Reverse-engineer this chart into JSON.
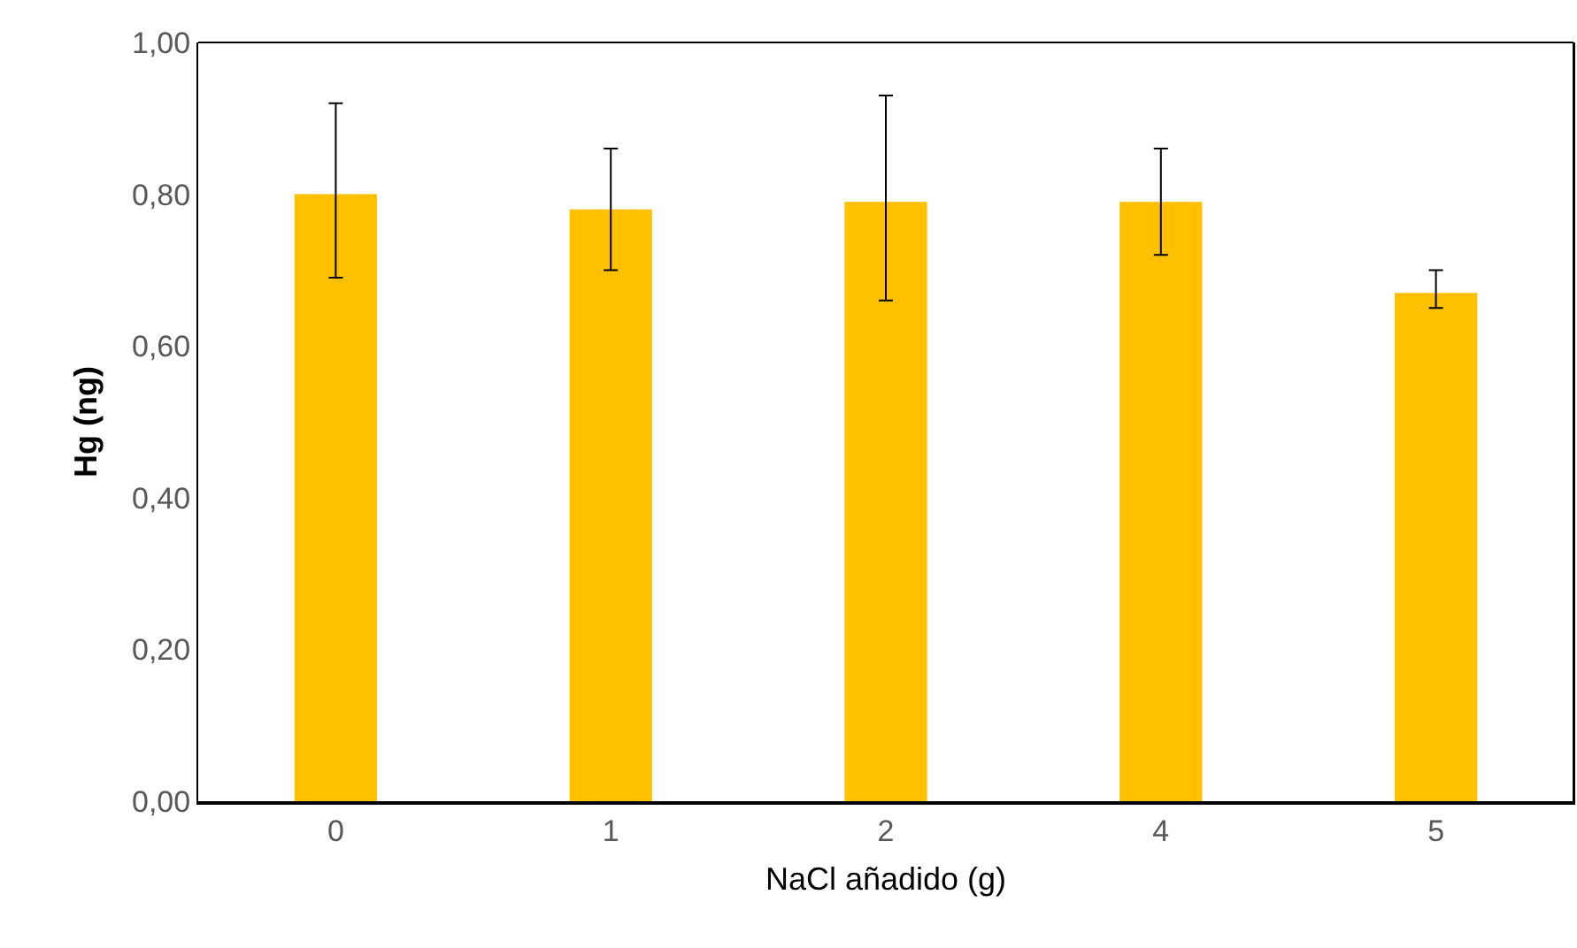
{
  "chart_data": {
    "type": "bar",
    "xlabel": "NaCl añadido (g)",
    "ylabel": "Hg (ng)",
    "categories": [
      "0",
      "1",
      "2",
      "4",
      "5"
    ],
    "values": [
      0.8,
      0.78,
      0.79,
      0.79,
      0.67
    ],
    "errors": [
      [
        0.69,
        0.92
      ],
      [
        0.7,
        0.86
      ],
      [
        0.66,
        0.93
      ],
      [
        0.72,
        0.86
      ],
      [
        0.65,
        0.7
      ]
    ],
    "color": "#ffc000",
    "ylim": [
      0,
      1
    ],
    "yticks": [
      {
        "value": 0,
        "label": "0,00"
      },
      {
        "value": 0.2,
        "label": "0,20"
      },
      {
        "value": 0.4,
        "label": "0,40"
      },
      {
        "value": 0.6,
        "label": "0,60"
      },
      {
        "value": 0.8,
        "label": "0,80"
      },
      {
        "value": 1,
        "label": "1,00"
      }
    ],
    "grid": false,
    "legend": false
  }
}
